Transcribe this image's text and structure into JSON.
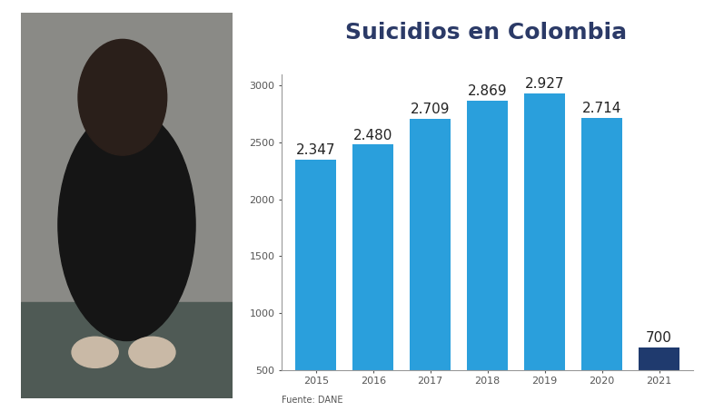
{
  "chart_data": {
    "type": "bar",
    "title": "Suicidios en Colombia",
    "categories": [
      "2015",
      "2016",
      "2017",
      "2018",
      "2019",
      "2020",
      "2021"
    ],
    "values": [
      2347,
      2480,
      2709,
      2869,
      2927,
      2714,
      700
    ],
    "value_labels": [
      "2.347",
      "2.480",
      "2.709",
      "2.869",
      "2.927",
      "2.714",
      "700"
    ],
    "colors": [
      "#2a9fdc",
      "#2a9fdc",
      "#2a9fdc",
      "#2a9fdc",
      "#2a9fdc",
      "#2a9fdc",
      "#1f3a6e"
    ],
    "ylim": [
      500,
      3100
    ],
    "yticks": [
      500,
      1000,
      1500,
      2000,
      2500,
      3000
    ],
    "grid": false,
    "data_labels": true,
    "source": "Fuente: DANE"
  }
}
